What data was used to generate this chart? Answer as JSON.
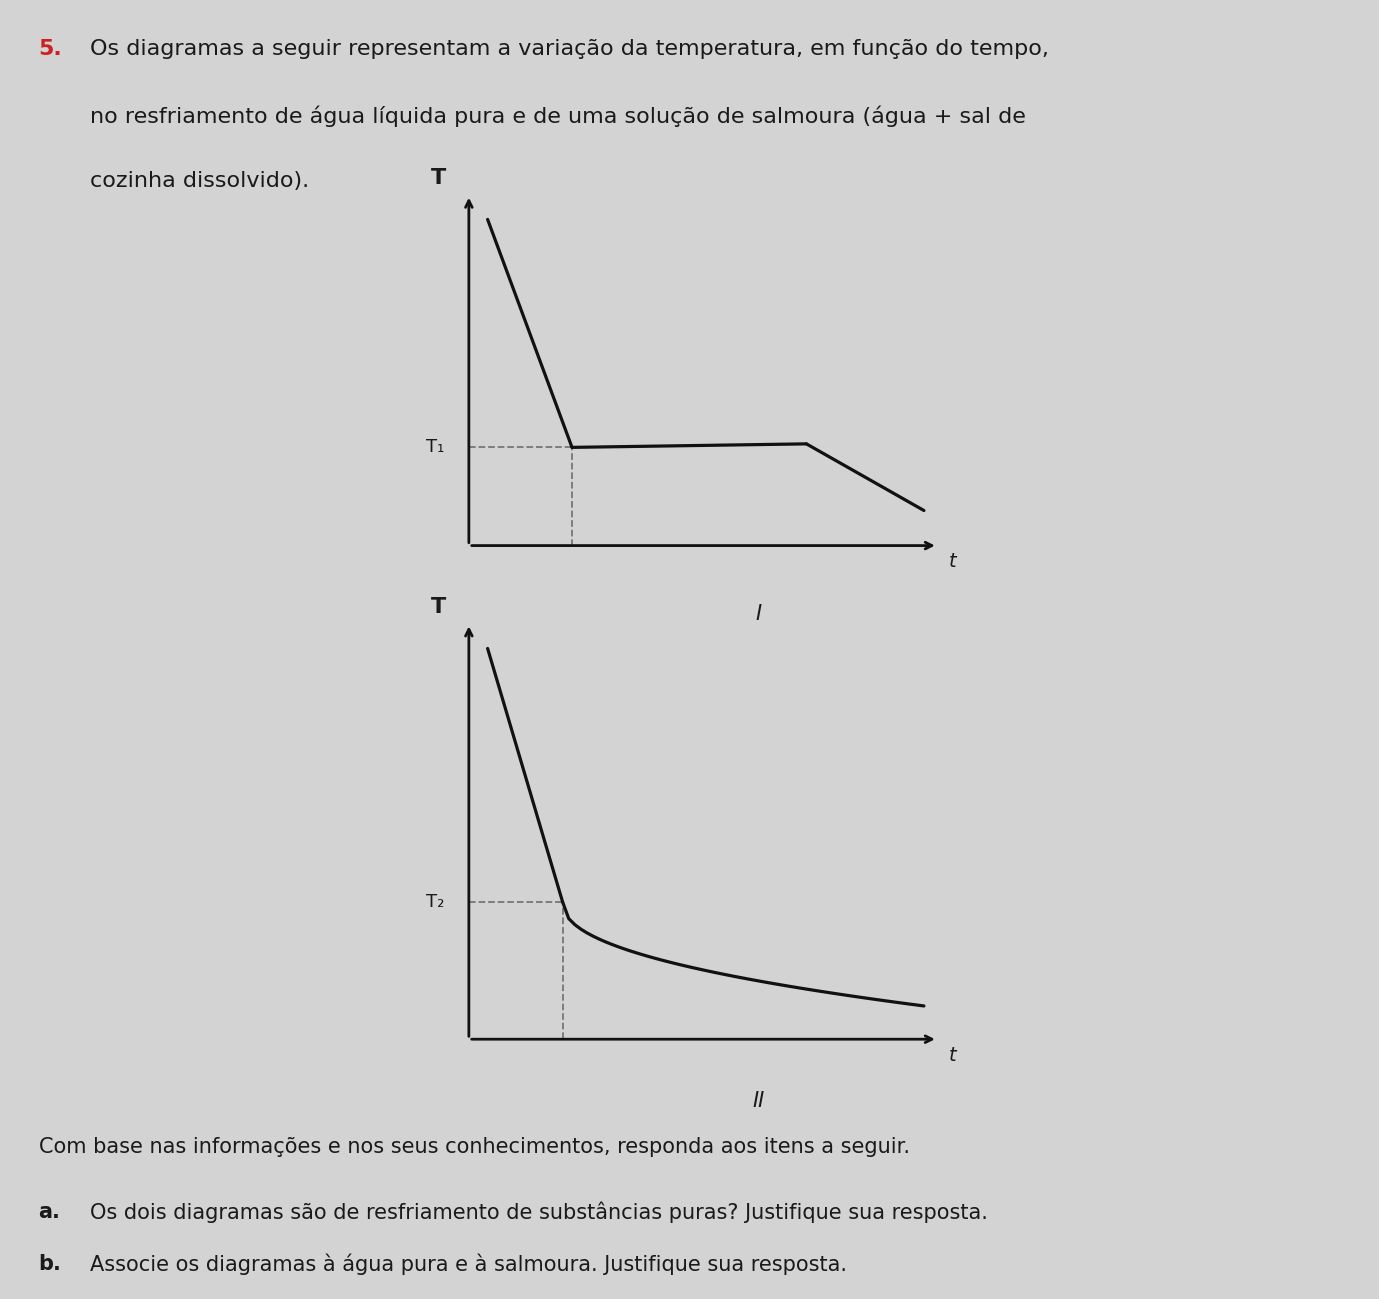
{
  "background_color": "#d3d3d3",
  "text_color": "#1a1a1a",
  "line_color": "#111111",
  "dashed_color": "#777777",
  "title_number": "5.",
  "title_text_line1": "Os diagramas a seguir representam a variação da temperatura, em função do tempo,",
  "title_text_line2": "no resfriamento de água líquida pura e de uma solução de salmoura (água + sal de",
  "title_text_line3": "cozinha dissolvido).",
  "diagram1_label": "I",
  "diagram2_label": "II",
  "diag1_T_label": "T",
  "diag1_t_label": "t",
  "diag1_T1_label": "T₁",
  "diag2_T_label": "T",
  "diag2_t_label": "t",
  "diag2_T2_label": "T₂",
  "footer_line1": "Com base nas informações e nos seus conhecimentos, responda aos itens a seguir.",
  "footer_line2a": "a.",
  "footer_line2b": "Os dois diagramas são de resfriamento de substâncias puras? Justifique sua resposta.",
  "footer_line3a": "b.",
  "footer_line3b": "Associe os diagramas à água pura e à salmoura. Justifique sua resposta.",
  "fig_width": 13.79,
  "fig_height": 12.99,
  "fig_dpi": 100
}
